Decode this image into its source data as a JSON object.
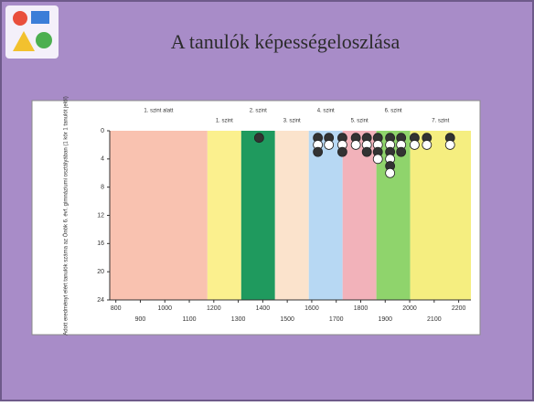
{
  "title": "A tanulók képességeloszlása",
  "chart_data": {
    "type": "dot-stack",
    "ylabel": "Adott eredményt elért tanulók száma az Önök 6. évf. gimnáziumi osztályában (1 kör 1 tanulót jelöl)",
    "xlim": [
      775,
      2250
    ],
    "xticks": [
      800,
      900,
      1000,
      1100,
      1200,
      1300,
      1400,
      1500,
      1600,
      1700,
      1800,
      1900,
      2000,
      2100,
      2200
    ],
    "ylim": [
      0,
      24
    ],
    "yticks": [
      0,
      4,
      8,
      12,
      16,
      20,
      24
    ],
    "levels": {
      "names": [
        "1. szint alatt",
        "1. szint",
        "2. szint",
        "3. szint",
        "4. szint",
        "5. szint",
        "6. szint",
        "7. szint"
      ],
      "edges": [
        775,
        1174,
        1312,
        1450,
        1588,
        1726,
        1864,
        2002,
        2250
      ],
      "colors": [
        "#f9c2b0",
        "#fbf08e",
        "#1f9a5e",
        "#fbe3cc",
        "#b7d8f3",
        "#f2b2ba",
        "#8fd46c",
        "#f5ee80"
      ]
    },
    "x": [
      1385,
      1625,
      1670,
      1725,
      1780,
      1825,
      1870,
      1920,
      1965,
      2020,
      2070,
      2165
    ],
    "values": [
      1,
      3,
      2,
      3,
      2,
      3,
      4,
      6,
      3,
      2,
      2,
      2
    ]
  }
}
